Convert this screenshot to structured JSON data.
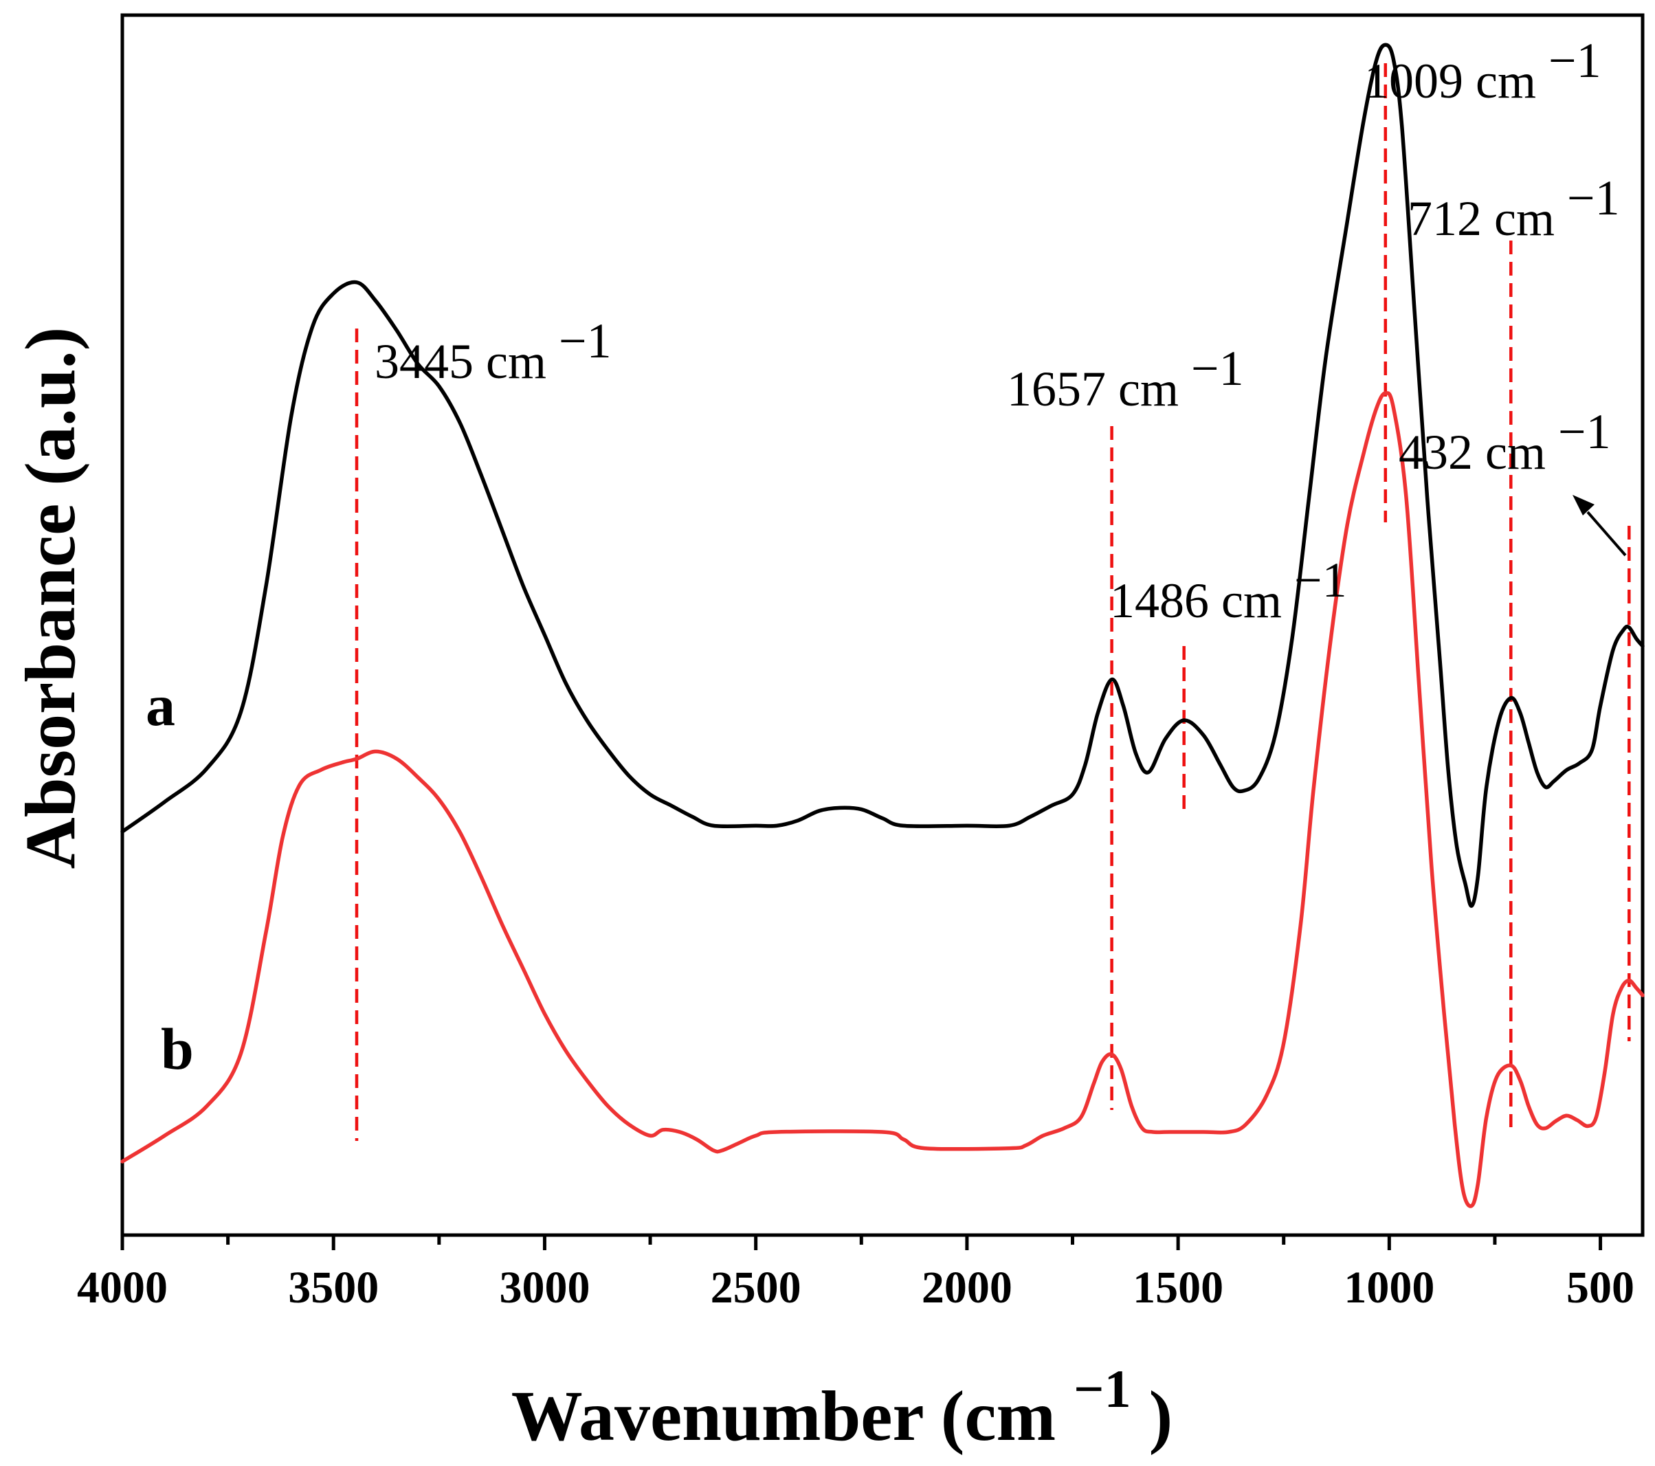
{
  "chart_data": {
    "type": "line",
    "title": "",
    "xlabel": "Wavenumber",
    "xlabel_unit": "(cm",
    "xlabel_sup": "−1",
    "xlabel_close": ")",
    "ylabel": "Absorbance (a.u.)",
    "xlim": [
      4000,
      400
    ],
    "x_reversed": true,
    "y_ticks_shown": false,
    "x_ticks": [
      {
        "value": 4000,
        "label": "4000"
      },
      {
        "value": 3500,
        "label": "3500"
      },
      {
        "value": 3000,
        "label": "3000"
      },
      {
        "value": 2500,
        "label": "2500"
      },
      {
        "value": 2000,
        "label": "2000"
      },
      {
        "value": 1500,
        "label": "1500"
      },
      {
        "value": 1000,
        "label": "1000"
      },
      {
        "value": 500,
        "label": "500"
      }
    ],
    "x_minor_ticks": [
      3750,
      3250,
      2750,
      2250,
      1750,
      1250,
      750
    ],
    "series": [
      {
        "name": "a",
        "color": "#000000",
        "points": [
          [
            4000,
            0.0
          ],
          [
            3900,
            0.04
          ],
          [
            3800,
            0.085
          ],
          [
            3720,
            0.16
          ],
          [
            3660,
            0.33
          ],
          [
            3600,
            0.56
          ],
          [
            3550,
            0.68
          ],
          [
            3500,
            0.725
          ],
          [
            3445,
            0.74
          ],
          [
            3400,
            0.715
          ],
          [
            3350,
            0.675
          ],
          [
            3300,
            0.63
          ],
          [
            3250,
            0.6
          ],
          [
            3200,
            0.55
          ],
          [
            3150,
            0.48
          ],
          [
            3100,
            0.405
          ],
          [
            3050,
            0.33
          ],
          [
            3000,
            0.265
          ],
          [
            2950,
            0.2
          ],
          [
            2900,
            0.15
          ],
          [
            2850,
            0.11
          ],
          [
            2800,
            0.075
          ],
          [
            2750,
            0.05
          ],
          [
            2700,
            0.035
          ],
          [
            2650,
            0.02
          ],
          [
            2600,
            0.008
          ],
          [
            2500,
            0.008
          ],
          [
            2450,
            0.008
          ],
          [
            2400,
            0.015
          ],
          [
            2350,
            0.028
          ],
          [
            2300,
            0.032
          ],
          [
            2250,
            0.03
          ],
          [
            2200,
            0.018
          ],
          [
            2150,
            0.008
          ],
          [
            2000,
            0.008
          ],
          [
            1900,
            0.008
          ],
          [
            1850,
            0.02
          ],
          [
            1800,
            0.035
          ],
          [
            1750,
            0.05
          ],
          [
            1720,
            0.09
          ],
          [
            1690,
            0.16
          ],
          [
            1657,
            0.205
          ],
          [
            1630,
            0.17
          ],
          [
            1600,
            0.105
          ],
          [
            1570,
            0.08
          ],
          [
            1530,
            0.125
          ],
          [
            1486,
            0.15
          ],
          [
            1440,
            0.13
          ],
          [
            1400,
            0.09
          ],
          [
            1370,
            0.06
          ],
          [
            1345,
            0.055
          ],
          [
            1310,
            0.07
          ],
          [
            1270,
            0.13
          ],
          [
            1230,
            0.26
          ],
          [
            1190,
            0.45
          ],
          [
            1150,
            0.64
          ],
          [
            1100,
            0.82
          ],
          [
            1060,
            0.96
          ],
          [
            1030,
            1.04
          ],
          [
            1009,
            1.06
          ],
          [
            990,
            1.04
          ],
          [
            970,
            0.95
          ],
          [
            940,
            0.7
          ],
          [
            910,
            0.45
          ],
          [
            880,
            0.23
          ],
          [
            860,
            0.08
          ],
          [
            840,
            -0.02
          ],
          [
            820,
            -0.07
          ],
          [
            805,
            -0.1
          ],
          [
            790,
            -0.06
          ],
          [
            770,
            0.06
          ],
          [
            740,
            0.15
          ],
          [
            712,
            0.18
          ],
          [
            690,
            0.16
          ],
          [
            670,
            0.12
          ],
          [
            650,
            0.08
          ],
          [
            630,
            0.06
          ],
          [
            610,
            0.068
          ],
          [
            580,
            0.083
          ],
          [
            550,
            0.092
          ],
          [
            520,
            0.11
          ],
          [
            500,
            0.17
          ],
          [
            470,
            0.245
          ],
          [
            445,
            0.272
          ],
          [
            432,
            0.275
          ],
          [
            415,
            0.26
          ],
          [
            400,
            0.25
          ]
        ]
      },
      {
        "name": "b",
        "color": "#ee3333",
        "points": [
          [
            4000,
            0.0
          ],
          [
            3900,
            0.035
          ],
          [
            3800,
            0.075
          ],
          [
            3720,
            0.145
          ],
          [
            3660,
            0.31
          ],
          [
            3620,
            0.44
          ],
          [
            3580,
            0.51
          ],
          [
            3530,
            0.53
          ],
          [
            3480,
            0.54
          ],
          [
            3445,
            0.545
          ],
          [
            3400,
            0.555
          ],
          [
            3350,
            0.545
          ],
          [
            3300,
            0.52
          ],
          [
            3250,
            0.49
          ],
          [
            3200,
            0.445
          ],
          [
            3150,
            0.385
          ],
          [
            3100,
            0.32
          ],
          [
            3050,
            0.26
          ],
          [
            3000,
            0.2
          ],
          [
            2950,
            0.15
          ],
          [
            2900,
            0.11
          ],
          [
            2850,
            0.075
          ],
          [
            2800,
            0.05
          ],
          [
            2750,
            0.035
          ],
          [
            2720,
            0.043
          ],
          [
            2680,
            0.04
          ],
          [
            2640,
            0.03
          ],
          [
            2600,
            0.015
          ],
          [
            2580,
            0.015
          ],
          [
            2540,
            0.025
          ],
          [
            2500,
            0.035
          ],
          [
            2450,
            0.04
          ],
          [
            2200,
            0.04
          ],
          [
            2150,
            0.03
          ],
          [
            2100,
            0.018
          ],
          [
            1900,
            0.018
          ],
          [
            1860,
            0.022
          ],
          [
            1820,
            0.035
          ],
          [
            1770,
            0.045
          ],
          [
            1730,
            0.06
          ],
          [
            1700,
            0.105
          ],
          [
            1680,
            0.135
          ],
          [
            1657,
            0.145
          ],
          [
            1635,
            0.125
          ],
          [
            1610,
            0.075
          ],
          [
            1585,
            0.045
          ],
          [
            1560,
            0.04
          ],
          [
            1520,
            0.04
          ],
          [
            1440,
            0.04
          ],
          [
            1380,
            0.04
          ],
          [
            1340,
            0.05
          ],
          [
            1290,
            0.09
          ],
          [
            1250,
            0.16
          ],
          [
            1210,
            0.32
          ],
          [
            1180,
            0.5
          ],
          [
            1140,
            0.7
          ],
          [
            1100,
            0.86
          ],
          [
            1060,
            0.96
          ],
          [
            1030,
            1.02
          ],
          [
            1009,
            1.04
          ],
          [
            990,
            1.02
          ],
          [
            960,
            0.9
          ],
          [
            930,
            0.65
          ],
          [
            900,
            0.4
          ],
          [
            870,
            0.2
          ],
          [
            845,
            0.05
          ],
          [
            825,
            -0.04
          ],
          [
            805,
            -0.06
          ],
          [
            790,
            -0.03
          ],
          [
            770,
            0.06
          ],
          [
            745,
            0.115
          ],
          [
            712,
            0.13
          ],
          [
            690,
            0.11
          ],
          [
            670,
            0.075
          ],
          [
            650,
            0.05
          ],
          [
            630,
            0.045
          ],
          [
            605,
            0.055
          ],
          [
            580,
            0.062
          ],
          [
            555,
            0.056
          ],
          [
            530,
            0.048
          ],
          [
            510,
            0.06
          ],
          [
            490,
            0.12
          ],
          [
            470,
            0.2
          ],
          [
            450,
            0.235
          ],
          [
            432,
            0.245
          ],
          [
            415,
            0.235
          ],
          [
            400,
            0.225
          ]
        ]
      }
    ],
    "series_labels": [
      "a",
      "b"
    ],
    "annotations": [
      {
        "wavenumber": 3445,
        "text": "3445 cm",
        "sup": "−1"
      },
      {
        "wavenumber": 1657,
        "text": "1657 cm",
        "sup": "−1"
      },
      {
        "wavenumber": 1486,
        "text": "1486 cm",
        "sup": "−1"
      },
      {
        "wavenumber": 1009,
        "text": "1009 cm",
        "sup": "−1"
      },
      {
        "wavenumber": 712,
        "text": "712 cm",
        "sup": "−1"
      },
      {
        "wavenumber": 432,
        "text": "432 cm",
        "sup": "−1"
      }
    ],
    "annotation_line_color": "#ee1111"
  }
}
